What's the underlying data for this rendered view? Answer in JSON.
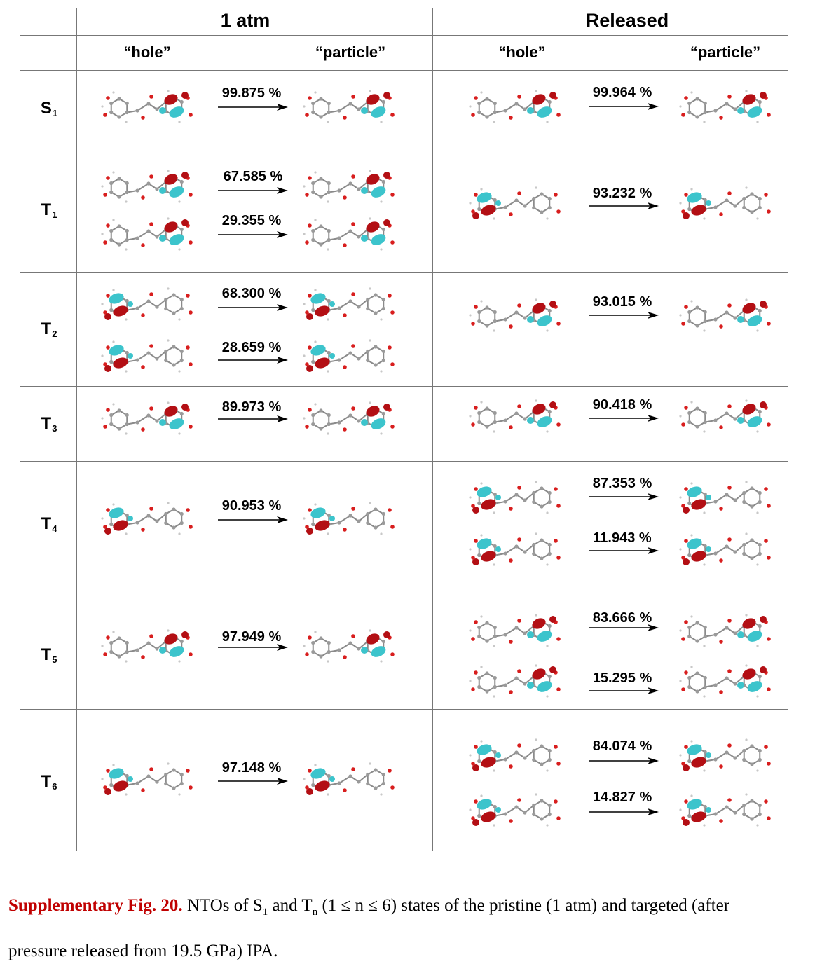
{
  "header": {
    "group_1atm": "1 atm",
    "group_released": "Released",
    "hole": "“hole”",
    "particle": "“particle”"
  },
  "rows": [
    {
      "state": "S",
      "sub": "1",
      "atm": [
        "99.875 %"
      ],
      "released": [
        "99.964 %"
      ]
    },
    {
      "state": "T",
      "sub": "1",
      "atm": [
        "67.585  %",
        "29.355 %"
      ],
      "released": [
        "93.232 %"
      ]
    },
    {
      "state": "T",
      "sub": "2",
      "atm": [
        "68.300 %",
        "28.659 %"
      ],
      "released": [
        "93.015 %"
      ]
    },
    {
      "state": "T",
      "sub": "3",
      "atm": [
        "89.973 %"
      ],
      "released": [
        "90.418 %"
      ]
    },
    {
      "state": "T",
      "sub": "4",
      "atm": [
        "90.953 %"
      ],
      "released": [
        "87.353 %",
        "11.943 %"
      ]
    },
    {
      "state": "T",
      "sub": "5",
      "atm": [
        "97.949 %"
      ],
      "released": [
        "83.666 %",
        "15.295 %"
      ]
    },
    {
      "state": "T",
      "sub": "6",
      "atm": [
        "97.148 %"
      ],
      "released": [
        "84.074 %",
        "14.827 %"
      ]
    }
  ],
  "caption": {
    "label": "Supplementary Fig. 20.",
    "t1": " NTOs of S",
    "s1": "1",
    "t2": " and T",
    "s2": "n",
    "t3": " (1 ≤ n ≤ 6) states of the pristine (1 atm) and targeted (after",
    "line2": "pressure released from 19.5 GPa) IPA."
  },
  "colors": {
    "lobe_red": "#b30f14",
    "lobe_cyan": "#3cc4cc",
    "atom_gray": "#9a9a9a",
    "atom_red": "#d81e1e"
  }
}
